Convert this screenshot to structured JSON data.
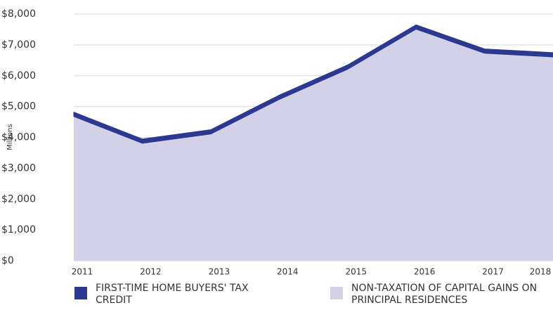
{
  "chart_data": {
    "type": "area",
    "stacked": true,
    "y_axis_label": "Millions",
    "categories": [
      "2011",
      "2012",
      "2013",
      "2014",
      "2015",
      "2016",
      "2017",
      "2018"
    ],
    "series": [
      {
        "name": "FIRST-TIME HOME BUYERS' TAX CREDIT",
        "color": "#2b3990",
        "values": [
          140,
          140,
          140,
          140,
          140,
          140,
          140,
          140
        ]
      },
      {
        "name": "NON-TAXATION OF CAPITAL GAINS ON PRINCIPAL RESIDENCES",
        "color": "#d3d1e7",
        "values": [
          4680,
          3810,
          4110,
          5230,
          6210,
          7510,
          6730,
          6610
        ]
      }
    ],
    "ylim": [
      0,
      8000
    ],
    "yticks": [
      {
        "value": 0,
        "label": "$0"
      },
      {
        "value": 1000,
        "label": "$1,000"
      },
      {
        "value": 2000,
        "label": "$2,000"
      },
      {
        "value": 3000,
        "label": "$3,000"
      },
      {
        "value": 4000,
        "label": "$4,000"
      },
      {
        "value": 5000,
        "label": "$5,000"
      },
      {
        "value": 6000,
        "label": "$6,000"
      },
      {
        "value": 7000,
        "label": "$7,000"
      },
      {
        "value": 8000,
        "label": "$8,000"
      }
    ],
    "grid": true
  }
}
